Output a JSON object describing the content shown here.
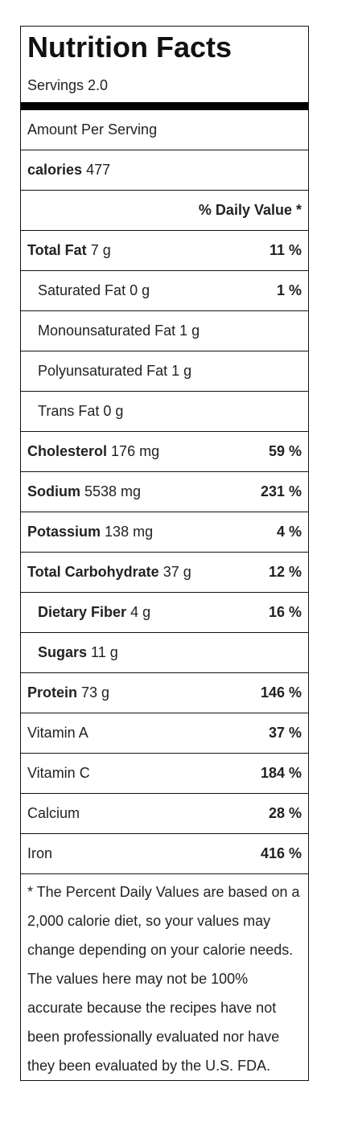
{
  "title": "Nutrition Facts",
  "servings": "Servings 2.0",
  "amount_per_serving": "Amount Per Serving",
  "calories": {
    "label": "calories",
    "value": "477"
  },
  "dv_header": "% Daily Value *",
  "nutrients": [
    {
      "name": "Total Fat",
      "amount": "7 g",
      "pct": "11 %"
    },
    {
      "name": "Saturated Fat",
      "amount": "0 g",
      "pct": "1 %"
    },
    {
      "name": "Monounsaturated Fat",
      "amount": "1 g",
      "pct": ""
    },
    {
      "name": "Polyunsaturated Fat",
      "amount": "1 g",
      "pct": ""
    },
    {
      "name": "Trans Fat",
      "amount": "0 g",
      "pct": ""
    },
    {
      "name": "Cholesterol",
      "amount": "176 mg",
      "pct": "59 %"
    },
    {
      "name": "Sodium",
      "amount": "5538 mg",
      "pct": "231 %"
    },
    {
      "name": "Potassium",
      "amount": "138 mg",
      "pct": "4 %"
    },
    {
      "name": "Total Carbohydrate",
      "amount": "37 g",
      "pct": "12 %"
    },
    {
      "name": "Dietary Fiber",
      "amount": "4 g",
      "pct": "16 %"
    },
    {
      "name": "Sugars",
      "amount": "11 g",
      "pct": ""
    },
    {
      "name": "Protein",
      "amount": "73 g",
      "pct": "146 %"
    }
  ],
  "vitamins": [
    {
      "name": "Vitamin A",
      "pct": "37 %"
    },
    {
      "name": "Vitamin C",
      "pct": "184 %"
    },
    {
      "name": "Calcium",
      "pct": "28 %"
    },
    {
      "name": "Iron",
      "pct": "416 %"
    }
  ],
  "footnote": "* The Percent Daily Values are based on a 2,000 calorie diet, so your values may change depending on your calorie needs. The values here may not be 100% accurate because the recipes have not been professionally evaluated nor have they been evaluated by the U.S. FDA."
}
